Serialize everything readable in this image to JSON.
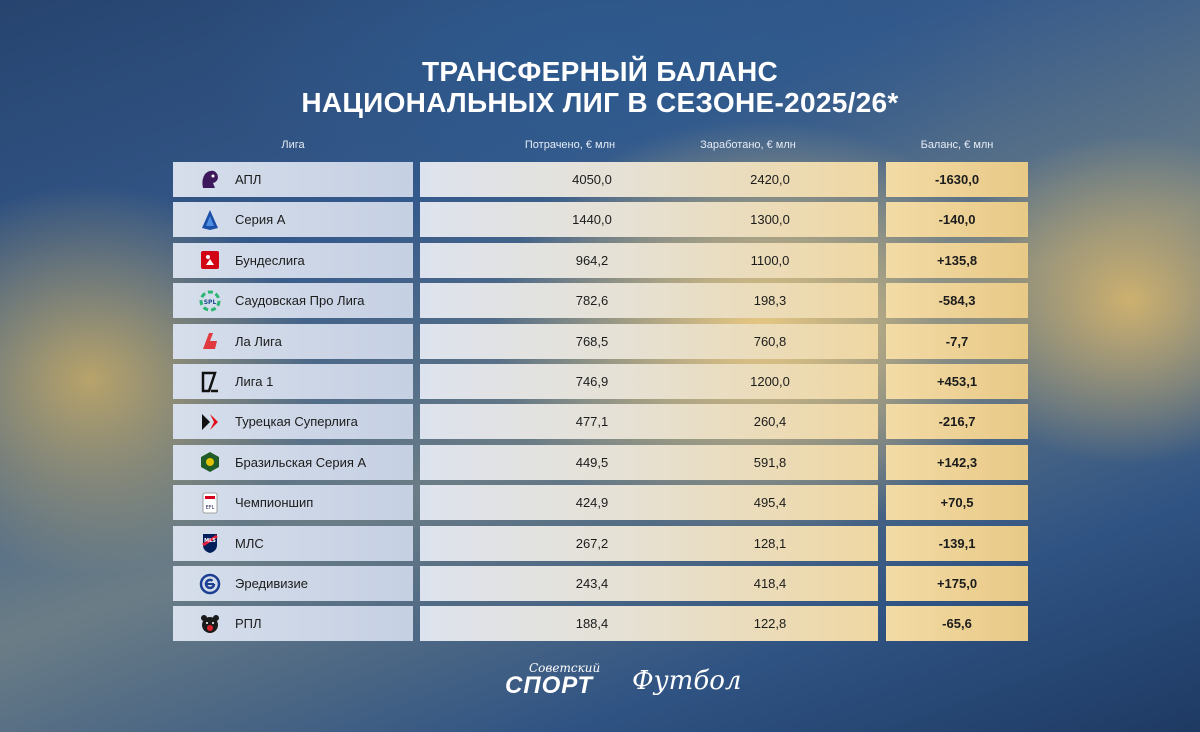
{
  "title": {
    "line1": "ТРАНСФЕРНЫЙ БАЛАНС",
    "line2": "НАЦИОНАЛЬНЫХ ЛИГ В СЕЗОНЕ-2025/26*"
  },
  "headers": {
    "league": "Лига",
    "spent": "Потрачено, € млн",
    "earned": "Заработано, € млн",
    "balance": "Баланс, € млн"
  },
  "rows": [
    {
      "league": "АПЛ",
      "spent": "4050,0",
      "earned": "2420,0",
      "balance": "-1630,0",
      "icon": "premier-league-lion-icon"
    },
    {
      "league": "Серия А",
      "spent": "1440,0",
      "earned": "1300,0",
      "balance": "-140,0",
      "icon": "serie-a-icon"
    },
    {
      "league": "Бундеслига",
      "spent": "964,2",
      "earned": "1100,0",
      "balance": "+135,8",
      "icon": "bundesliga-icon"
    },
    {
      "league": "Саудовская Про Лига",
      "spent": "782,6",
      "earned": "198,3",
      "balance": "-584,3",
      "icon": "saudi-pro-league-icon"
    },
    {
      "league": "Ла Лига",
      "spent": "768,5",
      "earned": "760,8",
      "balance": "-7,7",
      "icon": "la-liga-icon"
    },
    {
      "league": "Лига 1",
      "spent": "746,9",
      "earned": "1200,0",
      "balance": "+453,1",
      "icon": "ligue-1-icon"
    },
    {
      "league": "Турецкая Суперлига",
      "spent": "477,1",
      "earned": "260,4",
      "balance": "-216,7",
      "icon": "turkish-super-lig-icon"
    },
    {
      "league": "Бразильская Серия А",
      "spent": "449,5",
      "earned": "591,8",
      "balance": "+142,3",
      "icon": "brasileirao-icon"
    },
    {
      "league": "Чемпионшип",
      "spent": "424,9",
      "earned": "495,4",
      "balance": "+70,5",
      "icon": "championship-icon"
    },
    {
      "league": "МЛС",
      "spent": "267,2",
      "earned": "128,1",
      "balance": "-139,1",
      "icon": "mls-icon"
    },
    {
      "league": "Эредивизие",
      "spent": "243,4",
      "earned": "418,4",
      "balance": "+175,0",
      "icon": "eredivisie-icon"
    },
    {
      "league": "РПЛ",
      "spent": "188,4",
      "earned": "122,8",
      "balance": "-65,6",
      "icon": "rpl-bear-icon"
    }
  ],
  "footer": {
    "brand_small": "Советский",
    "brand_big": "СПОРТ",
    "brand2": "Футбол"
  },
  "colors": {
    "league_cell": "#d6deeb",
    "balance_cell": "#e8c986",
    "title": "#ffffff"
  }
}
